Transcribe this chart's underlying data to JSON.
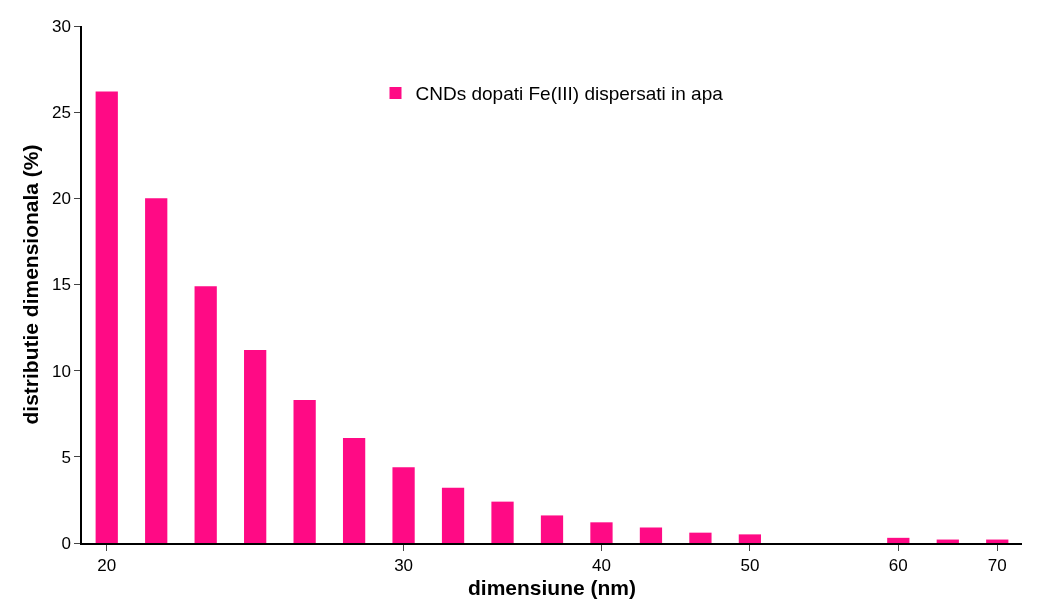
{
  "chart_data": {
    "type": "bar",
    "xlabel": "dimensiune (nm)",
    "ylabel": "distributie dimensionala (%)",
    "categories": [
      "20",
      null,
      null,
      null,
      null,
      null,
      "30",
      null,
      null,
      null,
      "40",
      null,
      null,
      "50",
      null,
      null,
      "60",
      null,
      "70"
    ],
    "series": [
      {
        "name": "CNDs dopati Fe(III) dispersati in apa",
        "color": "#ff0a85",
        "values": [
          26.2,
          20.0,
          14.9,
          11.2,
          8.3,
          6.1,
          4.4,
          3.2,
          2.4,
          1.6,
          1.2,
          0.9,
          0.6,
          0.5,
          0,
          0,
          0.3,
          0.2,
          0.2
        ]
      }
    ],
    "ylim": [
      0,
      30
    ],
    "yticks": [
      0,
      5,
      10,
      15,
      20,
      25,
      30
    ],
    "grid": false,
    "legend": "top"
  }
}
